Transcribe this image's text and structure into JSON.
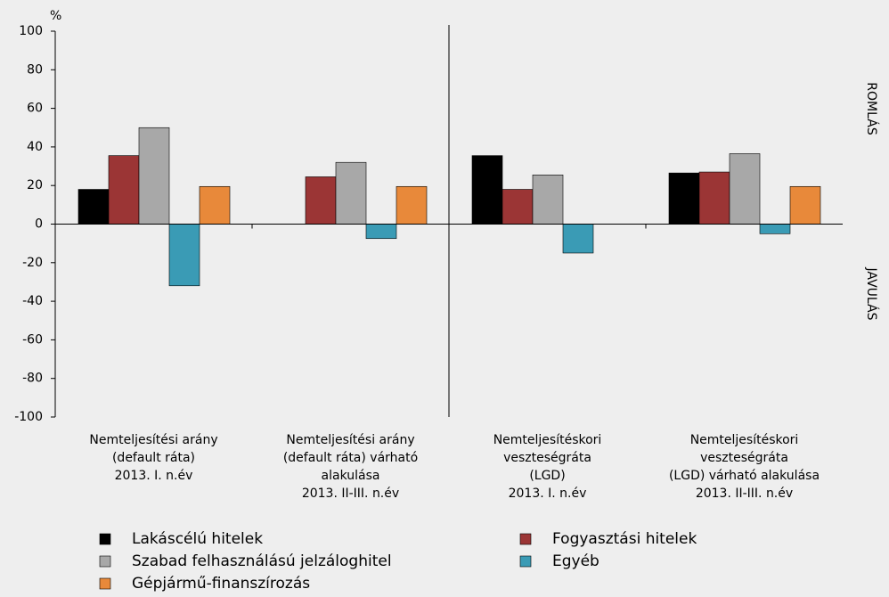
{
  "chart_data": {
    "type": "bar",
    "unit_label": "%",
    "categories": [
      "Nemteljesítési arány\n(default ráta)\n2013. I. n.év",
      "Nemteljesítési arány\n(default ráta) várható\nalakulása\n2013. II-III. n.év",
      "Nemteljesítéskori\nveszteségráta\n(LGD)\n2013. I. n.év",
      "Nemteljesítéskori\nveszteségráta\n(LGD) várható alakulása\n2013. II-III. n.év"
    ],
    "series": [
      {
        "name": "Lakáscélú hitelek",
        "color": "#000000",
        "values": [
          18,
          null,
          35.5,
          26.5
        ]
      },
      {
        "name": "Fogyasztási hitelek",
        "color": "#9b3535",
        "values": [
          35.5,
          24.5,
          18,
          27
        ]
      },
      {
        "name": "Szabad felhasználású jelzáloghitel",
        "color": "#a8a8a8",
        "values": [
          50,
          32,
          25.5,
          36.5
        ]
      },
      {
        "name": "Egyéb",
        "color": "#3a9bb5",
        "values": [
          -32,
          -7.5,
          -15,
          -5
        ]
      },
      {
        "name": "Gépjármű-finanszírozás",
        "color": "#e8893a",
        "values": [
          19.5,
          19.5,
          null,
          19.5
        ]
      }
    ],
    "ylim": [
      -100,
      100
    ],
    "yticks": [
      -100,
      -80,
      -60,
      -40,
      -20,
      0,
      20,
      40,
      60,
      80,
      100
    ],
    "annotations": [
      "ROMLÁS",
      "JAVULÁS"
    ]
  }
}
